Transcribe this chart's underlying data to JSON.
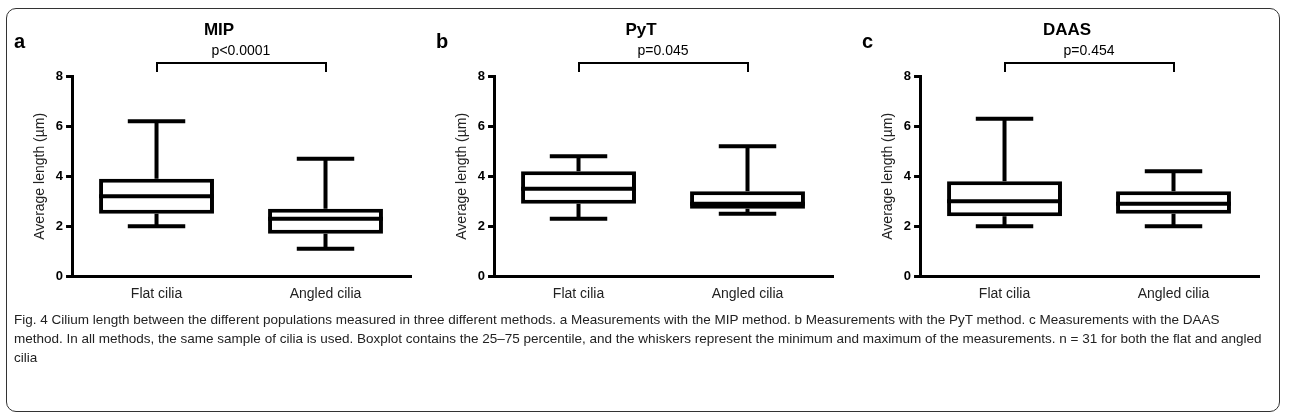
{
  "chart_data": [
    {
      "type": "box",
      "title": "MIP",
      "ylabel": "Average length (µm)",
      "categories": [
        "Flat cilia",
        "Angled cilia"
      ],
      "boxes": [
        {
          "low": 2.0,
          "q1": 2.5,
          "median": 3.2,
          "q3": 3.9,
          "high": 6.2
        },
        {
          "low": 1.1,
          "q1": 1.7,
          "median": 2.3,
          "q3": 2.7,
          "high": 4.7
        }
      ],
      "ylim": [
        0,
        8
      ],
      "yticks": [
        0,
        2,
        4,
        6,
        8
      ],
      "grid": false,
      "annotations": [
        "a",
        "p<0.0001"
      ]
    },
    {
      "type": "box",
      "title": "PyT",
      "ylabel": "Average length (µm)",
      "categories": [
        "Flat cilia",
        "Angled cilia"
      ],
      "boxes": [
        {
          "low": 2.3,
          "q1": 2.9,
          "median": 3.5,
          "q3": 4.2,
          "high": 4.8
        },
        {
          "low": 2.5,
          "q1": 2.7,
          "median": 2.9,
          "q3": 3.4,
          "high": 5.2
        }
      ],
      "ylim": [
        0,
        8
      ],
      "yticks": [
        0,
        2,
        4,
        6,
        8
      ],
      "grid": false,
      "annotations": [
        "b",
        "p=0.045"
      ]
    },
    {
      "type": "box",
      "title": "DAAS",
      "ylabel": "Average length (µm)",
      "categories": [
        "Flat cilia",
        "Angled cilia"
      ],
      "boxes": [
        {
          "low": 2.0,
          "q1": 2.4,
          "median": 3.0,
          "q3": 3.8,
          "high": 6.3
        },
        {
          "low": 2.0,
          "q1": 2.5,
          "median": 2.9,
          "q3": 3.4,
          "high": 4.2
        }
      ],
      "ylim": [
        0,
        8
      ],
      "yticks": [
        0,
        2,
        4,
        6,
        8
      ],
      "grid": false,
      "annotations": [
        "c",
        "p=0.454",
        "Fig. 4  Cilium length between the different populations measured in three different methods. a Measurements with the MIP method. b Measurements with the PyT method. c Measurements with the DAAS method. In all methods, the same sample of cilia is used. Boxplot contains the 25–75 percentile, and the whiskers represent the minimum and maximum of the measurements. n = 31 for both the flat and angled cilia"
      ]
    }
  ]
}
